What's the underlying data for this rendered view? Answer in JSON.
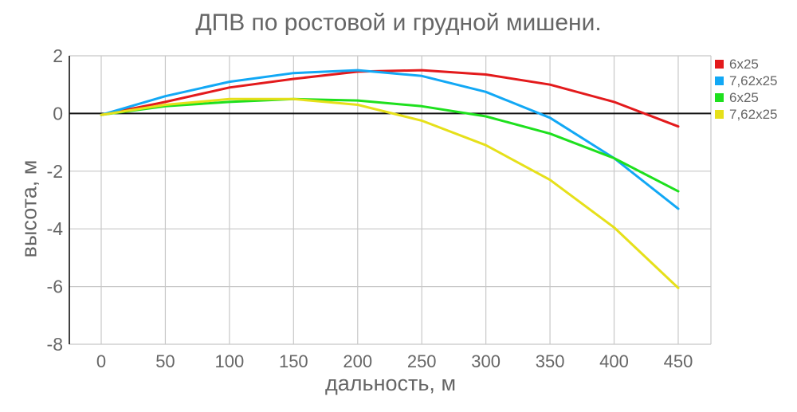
{
  "chart_data": {
    "type": "line",
    "title": "ДПВ по ростовой и грудной мишени.",
    "xlabel": "дальность, м",
    "ylabel": "высота, м",
    "x": [
      0,
      50,
      100,
      150,
      200,
      250,
      300,
      350,
      400,
      450
    ],
    "xlim": [
      0,
      450
    ],
    "ylim": [
      -8,
      2
    ],
    "x_ticks": [
      "0",
      "50",
      "100",
      "150",
      "200",
      "250",
      "300",
      "350",
      "400",
      "450"
    ],
    "y_ticks": [
      "2",
      "0",
      "-2",
      "-4",
      "-6",
      "-8"
    ],
    "grid": true,
    "legend_position": "right",
    "series": [
      {
        "name": "6x25",
        "color": "#e31a1c",
        "values": [
          -0.05,
          0.4,
          0.9,
          1.2,
          1.45,
          1.5,
          1.35,
          1.0,
          0.4,
          -0.45
        ]
      },
      {
        "name": "7,62x25",
        "color": "#12a8f5",
        "values": [
          -0.05,
          0.6,
          1.1,
          1.4,
          1.5,
          1.3,
          0.75,
          -0.15,
          -1.55,
          -3.3
        ]
      },
      {
        "name": "6x25",
        "color": "#1ee01e",
        "values": [
          -0.05,
          0.25,
          0.4,
          0.5,
          0.45,
          0.25,
          -0.1,
          -0.7,
          -1.55,
          -2.7
        ]
      },
      {
        "name": "7,62x25",
        "color": "#e6e01a",
        "values": [
          -0.05,
          0.3,
          0.5,
          0.5,
          0.3,
          -0.25,
          -1.1,
          -2.3,
          -3.95,
          -6.05
        ]
      }
    ]
  },
  "legend": {
    "items": [
      {
        "label": "6x25",
        "color": "#e31a1c"
      },
      {
        "label": "7,62x25",
        "color": "#12a8f5"
      },
      {
        "label": "6x25",
        "color": "#1ee01e"
      },
      {
        "label": "7,62x25",
        "color": "#e6e01a"
      }
    ]
  }
}
